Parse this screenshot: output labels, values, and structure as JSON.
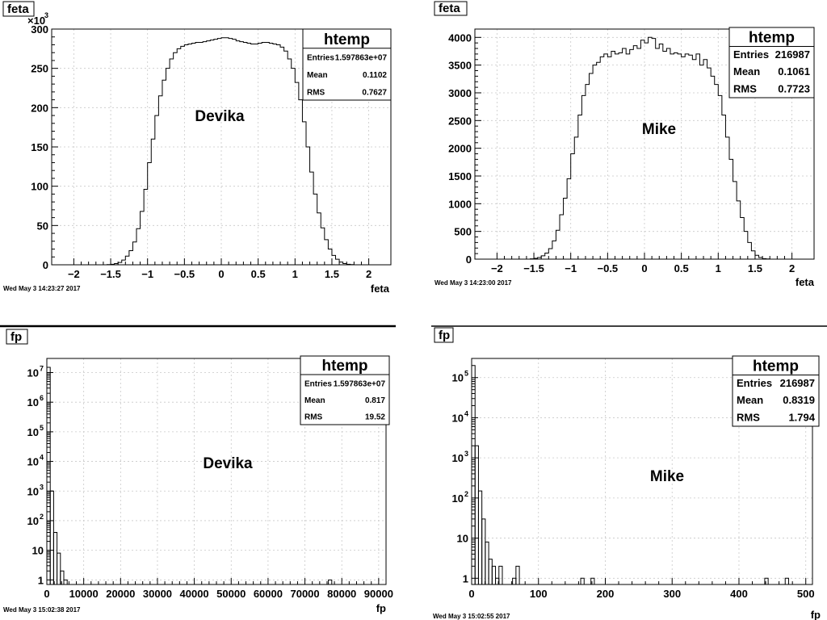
{
  "chart_data": [
    {
      "type": "histogram",
      "title": "feta",
      "xlabel": "feta",
      "x_exponent_label": "",
      "y_exponent_label": "×10",
      "y_exponent_power": "3",
      "xlim": [
        -2.3,
        2.3
      ],
      "ylim": [
        0,
        300
      ],
      "log_y": false,
      "grid": true,
      "x_ticks": [
        {
          "value": -2,
          "label": "−2"
        },
        {
          "value": -1.5,
          "label": "−1.5"
        },
        {
          "value": -1,
          "label": "−1"
        },
        {
          "value": -0.5,
          "label": "−0.5"
        },
        {
          "value": 0,
          "label": "0"
        },
        {
          "value": 0.5,
          "label": "0.5"
        },
        {
          "value": 1,
          "label": "1"
        },
        {
          "value": 1.5,
          "label": "1.5"
        },
        {
          "value": 2,
          "label": "2"
        }
      ],
      "y_ticks": [
        {
          "value": 0,
          "label": "0"
        },
        {
          "value": 50,
          "label": "50"
        },
        {
          "value": 100,
          "label": "100"
        },
        {
          "value": 150,
          "label": "150"
        },
        {
          "value": 200,
          "label": "200"
        },
        {
          "value": 250,
          "label": "250"
        },
        {
          "value": 300,
          "label": "300"
        }
      ],
      "bin_edges": [
        -2.0,
        1.9
      ],
      "bin_width": 0.05,
      "values": [
        0,
        0,
        0,
        0,
        0,
        0,
        0,
        0,
        0,
        0.3,
        0.7,
        1.5,
        3,
        6,
        11,
        18,
        29,
        46,
        68,
        96,
        130,
        160,
        190,
        215,
        235,
        250,
        262,
        270,
        275,
        278,
        280,
        281,
        282,
        283,
        283,
        284,
        285,
        286,
        287,
        288,
        289,
        289,
        288,
        287,
        285,
        284,
        283,
        282,
        281,
        281,
        282,
        283,
        283,
        282,
        281,
        280,
        277,
        272,
        262,
        250,
        232,
        210,
        182,
        150,
        118,
        90,
        66,
        47,
        32,
        20,
        12,
        7,
        3.5,
        1.5,
        0.6,
        0.2,
        0,
        0
      ],
      "stats": {
        "name": "htemp",
        "rows": [
          {
            "label": "Entries",
            "value": "1.597863e+07"
          },
          {
            "label": "Mean",
            "value": "0.1102"
          },
          {
            "label": "RMS",
            "value": "0.7627"
          }
        ]
      },
      "annotation": "Devika",
      "timestamp": "Wed May  3 14:23:27 2017",
      "stats_style": "small"
    },
    {
      "type": "histogram",
      "title": "feta",
      "xlabel": "feta",
      "x_exponent_label": "",
      "y_exponent_label": "",
      "y_exponent_power": "",
      "xlim": [
        -2.3,
        2.3
      ],
      "ylim": [
        0,
        4150
      ],
      "log_y": false,
      "grid": true,
      "x_ticks": [
        {
          "value": -2,
          "label": "−2"
        },
        {
          "value": -1.5,
          "label": "−1.5"
        },
        {
          "value": -1,
          "label": "−1"
        },
        {
          "value": -0.5,
          "label": "−0.5"
        },
        {
          "value": 0,
          "label": "0"
        },
        {
          "value": 0.5,
          "label": "0.5"
        },
        {
          "value": 1,
          "label": "1"
        },
        {
          "value": 1.5,
          "label": "1.5"
        },
        {
          "value": 2,
          "label": "2"
        }
      ],
      "y_ticks": [
        {
          "value": 0,
          "label": "0"
        },
        {
          "value": 500,
          "label": "500"
        },
        {
          "value": 1000,
          "label": "1000"
        },
        {
          "value": 1500,
          "label": "1500"
        },
        {
          "value": 2000,
          "label": "2000"
        },
        {
          "value": 2500,
          "label": "2500"
        },
        {
          "value": 3000,
          "label": "3000"
        },
        {
          "value": 3500,
          "label": "3500"
        },
        {
          "value": 4000,
          "label": "4000"
        }
      ],
      "bin_edges": [
        -2.0,
        1.9
      ],
      "bin_width": 0.05,
      "values": [
        0,
        0,
        0,
        0,
        0,
        0,
        0,
        0,
        0,
        5,
        15,
        30,
        60,
        110,
        190,
        330,
        520,
        800,
        1100,
        1450,
        1900,
        2200,
        2600,
        2950,
        3150,
        3350,
        3500,
        3550,
        3650,
        3700,
        3650,
        3750,
        3700,
        3720,
        3800,
        3700,
        3780,
        3850,
        3800,
        3950,
        3900,
        4000,
        3980,
        3800,
        3880,
        3750,
        3800,
        3700,
        3720,
        3700,
        3650,
        3700,
        3680,
        3600,
        3700,
        3500,
        3600,
        3450,
        3300,
        3150,
        2950,
        2600,
        2200,
        1800,
        1400,
        1050,
        750,
        500,
        300,
        150,
        70,
        30,
        10,
        3,
        0,
        0,
        0,
        0
      ],
      "stats": {
        "name": "htemp",
        "rows": [
          {
            "label": "Entries",
            "value": "216987"
          },
          {
            "label": "Mean",
            "value": "0.1061"
          },
          {
            "label": "RMS",
            "value": "0.7723"
          }
        ]
      },
      "annotation": "Mike",
      "timestamp": "Wed May  3 14:23:00 2017",
      "stats_style": "large"
    },
    {
      "type": "histogram",
      "title": "fp",
      "xlabel": "fp",
      "x_exponent_label": "",
      "y_exponent_label": "",
      "y_exponent_power": "",
      "xlim": [
        0,
        92000
      ],
      "ylim_log": [
        0.7,
        30000000
      ],
      "log_y": true,
      "grid": true,
      "x_ticks": [
        {
          "value": 0,
          "label": "0"
        },
        {
          "value": 10000,
          "label": "10000"
        },
        {
          "value": 20000,
          "label": "20000"
        },
        {
          "value": 30000,
          "label": "30000"
        },
        {
          "value": 40000,
          "label": "40000"
        },
        {
          "value": 50000,
          "label": "50000"
        },
        {
          "value": 60000,
          "label": "60000"
        },
        {
          "value": 70000,
          "label": "70000"
        },
        {
          "value": 80000,
          "label": "80000"
        },
        {
          "value": 90000,
          "label": "90000"
        }
      ],
      "y_ticks": [
        {
          "value": 1,
          "label": "1",
          "power": ""
        },
        {
          "value": 10,
          "label": "10",
          "power": ""
        },
        {
          "value": 100,
          "label": "10",
          "power": "2"
        },
        {
          "value": 1000,
          "label": "10",
          "power": "3"
        },
        {
          "value": 10000,
          "label": "10",
          "power": "4"
        },
        {
          "value": 100000,
          "label": "10",
          "power": "5"
        },
        {
          "value": 1000000,
          "label": "10",
          "power": "6"
        },
        {
          "value": 10000000,
          "label": "10",
          "power": "7"
        }
      ],
      "bin_edges": [
        0,
        92000
      ],
      "bin_width": 920,
      "sparse_bins": [
        {
          "x": 0,
          "count": 15000000
        },
        {
          "x": 920,
          "count": 1000
        },
        {
          "x": 1840,
          "count": 40
        },
        {
          "x": 2760,
          "count": 8
        },
        {
          "x": 3680,
          "count": 2
        },
        {
          "x": 4600,
          "count": 1
        },
        {
          "x": 76360,
          "count": 1
        }
      ],
      "stats": {
        "name": "htemp",
        "rows": [
          {
            "label": "Entries",
            "value": "1.597863e+07"
          },
          {
            "label": "Mean",
            "value": "0.817"
          },
          {
            "label": "RMS",
            "value": "19.52"
          }
        ]
      },
      "annotation": "Devika",
      "timestamp": "Wed May  3 15:02:38 2017",
      "stats_style": "small"
    },
    {
      "type": "histogram",
      "title": "fp",
      "xlabel": "fp",
      "x_exponent_label": "",
      "y_exponent_label": "",
      "y_exponent_power": "",
      "xlim": [
        0,
        510
      ],
      "ylim_log": [
        0.7,
        300000
      ],
      "log_y": true,
      "grid": true,
      "x_ticks": [
        {
          "value": 0,
          "label": "0"
        },
        {
          "value": 100,
          "label": "100"
        },
        {
          "value": 200,
          "label": "200"
        },
        {
          "value": 300,
          "label": "300"
        },
        {
          "value": 400,
          "label": "400"
        },
        {
          "value": 500,
          "label": "500"
        }
      ],
      "y_ticks": [
        {
          "value": 1,
          "label": "1",
          "power": ""
        },
        {
          "value": 10,
          "label": "10",
          "power": ""
        },
        {
          "value": 100,
          "label": "10",
          "power": "2"
        },
        {
          "value": 1000,
          "label": "10",
          "power": "3"
        },
        {
          "value": 10000,
          "label": "10",
          "power": "4"
        },
        {
          "value": 100000,
          "label": "10",
          "power": "5"
        }
      ],
      "bin_edges": [
        0,
        510
      ],
      "bin_width": 5.1,
      "sparse_bins": [
        {
          "x": 0,
          "count": 200000
        },
        {
          "x": 5.1,
          "count": 2000
        },
        {
          "x": 10.2,
          "count": 150
        },
        {
          "x": 15.3,
          "count": 30
        },
        {
          "x": 20.4,
          "count": 8
        },
        {
          "x": 25.5,
          "count": 3
        },
        {
          "x": 30.6,
          "count": 2
        },
        {
          "x": 35.7,
          "count": 1
        },
        {
          "x": 40.8,
          "count": 2
        },
        {
          "x": 61.2,
          "count": 1
        },
        {
          "x": 66.3,
          "count": 2
        },
        {
          "x": 163.2,
          "count": 1
        },
        {
          "x": 178.5,
          "count": 1
        },
        {
          "x": 438.6,
          "count": 1
        },
        {
          "x": 469.2,
          "count": 1
        }
      ],
      "stats": {
        "name": "htemp",
        "rows": [
          {
            "label": "Entries",
            "value": "216987"
          },
          {
            "label": "Mean",
            "value": "0.8319"
          },
          {
            "label": "RMS",
            "value": "1.794"
          }
        ]
      },
      "annotation": "Mike",
      "timestamp": "Wed May  3 15:02:55 2017",
      "stats_style": "large"
    }
  ]
}
